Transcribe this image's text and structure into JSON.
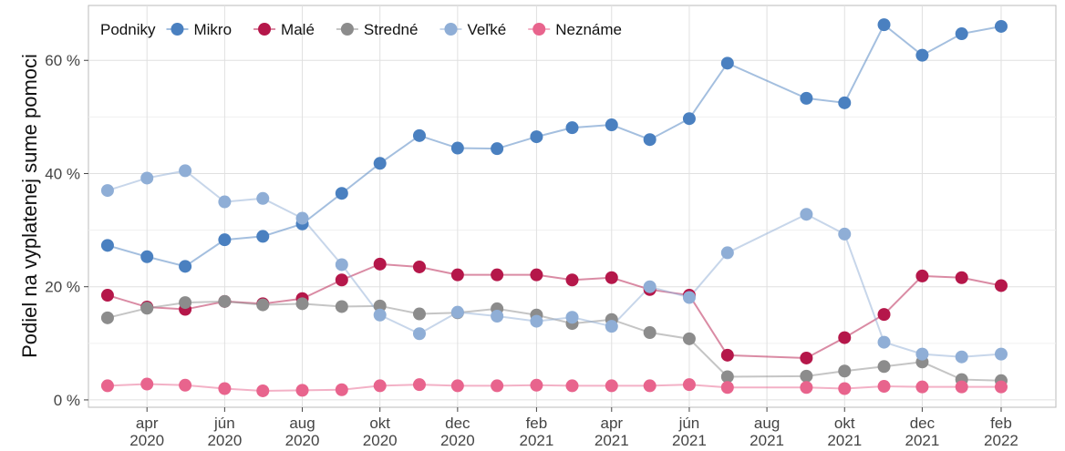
{
  "chart_data": {
    "type": "line",
    "y_label": "Podiel na vyplatenej sume pomoci",
    "legend_title": "Podniky",
    "legend_position": "top-left",
    "x": [
      "2020-03",
      "2020-04",
      "2020-05",
      "2020-06",
      "2020-07",
      "2020-08",
      "2020-09",
      "2020-10",
      "2020-11",
      "2020-12",
      "2021-01",
      "2021-02",
      "2021-03",
      "2021-04",
      "2021-05",
      "2021-06",
      "2021-07",
      "2021-09",
      "2021-10",
      "2021-11",
      "2021-12",
      "2022-01",
      "2022-02"
    ],
    "xlim": [
      "2020-02-15",
      "2022-03-16"
    ],
    "xticks": [
      {
        "value": "2020-04",
        "label": [
          "apr",
          "2020"
        ]
      },
      {
        "value": "2020-06",
        "label": [
          "jún",
          "2020"
        ]
      },
      {
        "value": "2020-08",
        "label": [
          "aug",
          "2020"
        ]
      },
      {
        "value": "2020-10",
        "label": [
          "okt",
          "2020"
        ]
      },
      {
        "value": "2020-12",
        "label": [
          "dec",
          "2020"
        ]
      },
      {
        "value": "2021-02",
        "label": [
          "feb",
          "2021"
        ]
      },
      {
        "value": "2021-04",
        "label": [
          "apr",
          "2021"
        ]
      },
      {
        "value": "2021-06",
        "label": [
          "jún",
          "2021"
        ]
      },
      {
        "value": "2021-08",
        "label": [
          "aug",
          "2021"
        ]
      },
      {
        "value": "2021-10",
        "label": [
          "okt",
          "2021"
        ]
      },
      {
        "value": "2021-12",
        "label": [
          "dec",
          "2021"
        ]
      },
      {
        "value": "2022-02",
        "label": [
          "feb",
          "2022"
        ]
      }
    ],
    "ylim": [
      -1.3,
      69.7
    ],
    "yticks": [
      {
        "value": 0,
        "label": "0 %"
      },
      {
        "value": 20,
        "label": "20 %"
      },
      {
        "value": 40,
        "label": "40 %"
      },
      {
        "value": 60,
        "label": "60 %"
      }
    ],
    "minor_yticks": [
      10,
      30,
      50
    ],
    "grid": true,
    "series": [
      {
        "name": "Mikro",
        "color": "#4a80c0",
        "values": [
          27.3,
          25.3,
          23.6,
          28.3,
          28.9,
          31.1,
          36.5,
          41.8,
          46.7,
          44.5,
          44.4,
          46.5,
          48.1,
          48.6,
          46.0,
          49.7,
          59.5,
          53.3,
          52.5,
          66.3,
          60.9,
          64.7,
          66.0
        ]
      },
      {
        "name": "Malé",
        "color": "#b5174a",
        "values": [
          18.5,
          16.4,
          16.0,
          17.4,
          17.0,
          17.9,
          21.2,
          24.0,
          23.5,
          22.1,
          22.1,
          22.1,
          21.2,
          21.6,
          19.5,
          18.5,
          7.9,
          7.4,
          11.0,
          15.1,
          21.9,
          21.6,
          20.2
        ]
      },
      {
        "name": "Stredné",
        "color": "#8c8c8c",
        "values": [
          14.5,
          16.2,
          17.2,
          17.4,
          16.8,
          17.0,
          16.5,
          16.6,
          15.2,
          15.4,
          16.1,
          15.0,
          13.5,
          14.2,
          11.9,
          10.8,
          4.1,
          4.2,
          5.1,
          5.9,
          6.7,
          3.6,
          3.4
        ]
      },
      {
        "name": "Veľké",
        "color": "#8faed6",
        "values": [
          37.0,
          39.2,
          40.5,
          35.0,
          35.6,
          32.1,
          23.9,
          15.0,
          11.7,
          15.5,
          14.8,
          13.9,
          14.6,
          13.0,
          20.0,
          18.1,
          26.0,
          32.8,
          29.3,
          10.2,
          8.1,
          7.6,
          8.1
        ]
      },
      {
        "name": "Neznáme",
        "color": "#e8648d",
        "values": [
          2.5,
          2.8,
          2.6,
          2.0,
          1.6,
          1.7,
          1.8,
          2.5,
          2.7,
          2.5,
          2.5,
          2.6,
          2.5,
          2.5,
          2.5,
          2.7,
          2.2,
          2.2,
          2.0,
          2.4,
          2.3,
          2.3,
          2.3
        ]
      }
    ]
  }
}
